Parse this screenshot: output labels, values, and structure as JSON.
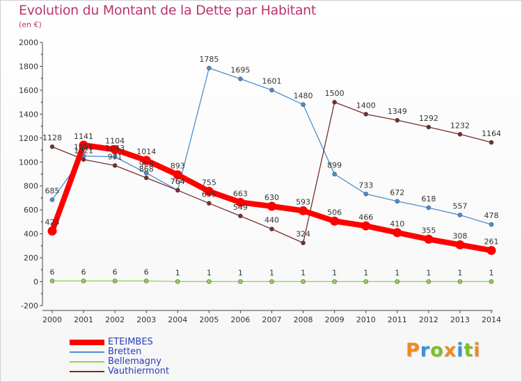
{
  "header": {
    "title": "Evolution du Montant de la Dette par Habitant",
    "subtitle": "(en €)"
  },
  "logo": {
    "text": "Proxiti",
    "letters": [
      {
        "ch": "P",
        "color": "#f08a1c"
      },
      {
        "ch": "r",
        "color": "#3e8fd6"
      },
      {
        "ch": "o",
        "color": "#7bbf2d"
      },
      {
        "ch": "x",
        "color": "#f08a1c"
      },
      {
        "ch": "i",
        "color": "#3e8fd6"
      },
      {
        "ch": "t",
        "color": "#7bbf2d"
      },
      {
        "ch": "i",
        "color": "#f08a1c"
      }
    ]
  },
  "chart_data": {
    "type": "line",
    "title": "Evolution du Montant de la Dette par Habitant",
    "ylabel": "(en €)",
    "x": [
      "2000",
      "2001",
      "2002",
      "2003",
      "2004",
      "2005",
      "2006",
      "2007",
      "2008",
      "2009",
      "2010",
      "2011",
      "2012",
      "2013",
      "2014"
    ],
    "ylim": [
      -200,
      2000
    ],
    "yticks": [
      -200,
      0,
      200,
      400,
      600,
      800,
      1000,
      1200,
      1400,
      1600,
      1800,
      2000
    ],
    "grid": false,
    "legend_position": "bottom-left",
    "series": [
      {
        "name": "ETEIMBES",
        "color": "#ff0000",
        "thick": true,
        "values": [
          423,
          1141,
          1104,
          1014,
          893,
          755,
          663,
          630,
          593,
          506,
          466,
          410,
          355,
          308,
          261
        ],
        "labels": [
          "423",
          "1141",
          "1104",
          "1014",
          "893",
          "755",
          "663",
          "630",
          "593",
          "506",
          "466",
          "410",
          "355",
          "308",
          "261"
        ]
      },
      {
        "name": "Bretten",
        "color": "#4a8ecf",
        "thick": false,
        "values": [
          685,
          1051,
          1043,
          908,
          764,
          1785,
          1695,
          1601,
          1480,
          899,
          733,
          672,
          618,
          557,
          478
        ],
        "labels": [
          "685",
          "1051",
          "1043",
          "908",
          "764",
          "1785",
          "1695",
          "1601",
          "1480",
          "899",
          "733",
          "672",
          "618",
          "557",
          "478"
        ]
      },
      {
        "name": "Bellemagny",
        "color": "#8fd14f",
        "thick": false,
        "values": [
          6,
          6,
          6,
          6,
          1,
          1,
          1,
          1,
          1,
          1,
          1,
          1,
          1,
          1,
          1
        ],
        "labels": [
          "6",
          "6",
          "6",
          "6",
          "1",
          "1",
          "1",
          "1",
          "1",
          "1",
          "1",
          "1",
          "1",
          "1",
          "1"
        ]
      },
      {
        "name": "Vauthiermont",
        "color": "#7a2a2a",
        "thick": false,
        "values": [
          1128,
          1021,
          971,
          868,
          764,
          655,
          549,
          440,
          324,
          1500,
          1400,
          1349,
          1292,
          1232,
          1164
        ],
        "labels": [
          "1128",
          "1021",
          "971",
          "868",
          "764",
          "655",
          "549",
          "440",
          "324",
          "1500",
          "1400",
          "1349",
          "1292",
          "1232",
          "1164"
        ]
      }
    ]
  }
}
